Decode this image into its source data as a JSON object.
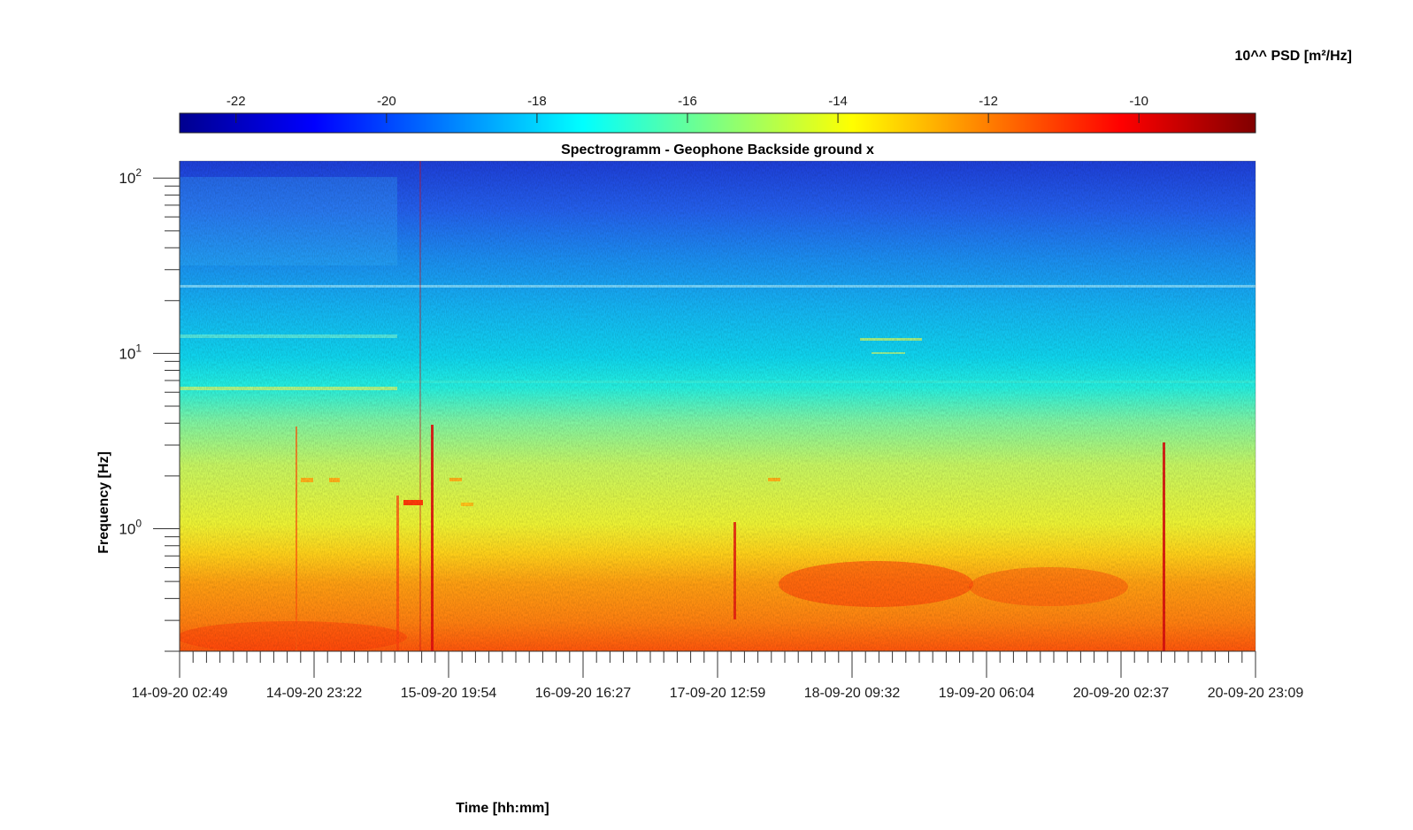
{
  "chart_data": {
    "type": "heatmap",
    "title": "Spectrogramm - Geophone Backside ground x",
    "xlabel": "Time [hh:mm]",
    "ylabel": "Frequency [Hz]",
    "x_scale": "time",
    "y_scale": "log",
    "x_ticks": [
      "14-09-20 02:49",
      "14-09-20 23:22",
      "15-09-20 19:54",
      "16-09-20 16:27",
      "17-09-20 12:59",
      "18-09-20 09:32",
      "19-09-20 06:04",
      "20-09-20 02:37",
      "20-09-20 23:09"
    ],
    "xlim": [
      "14-09-20 02:49",
      "20-09-20 23:09"
    ],
    "y_ticks": [
      {
        "base": "10",
        "exp": "0",
        "value": 1
      },
      {
        "base": "10",
        "exp": "1",
        "value": 10
      },
      {
        "base": "10",
        "exp": "2",
        "value": 100
      }
    ],
    "ylim": [
      0.2,
      125
    ],
    "colorbar": {
      "label": "10^^ PSD [m²/Hz]",
      "ticks": [
        "-22",
        "-20",
        "-18",
        "-16",
        "-14",
        "-12",
        "-10"
      ],
      "tick_values": [
        -22,
        -20,
        -18,
        -16,
        -14,
        -12,
        -10
      ],
      "range": [
        -22.75,
        -8.45
      ],
      "colormap": "jet",
      "placement": "top"
    },
    "approx_psd_profile_by_frequency": [
      {
        "freq_hz": 0.2,
        "log10_psd": -11.2
      },
      {
        "freq_hz": 0.5,
        "log10_psd": -11.8
      },
      {
        "freq_hz": 0.7,
        "log10_psd": -12.8
      },
      {
        "freq_hz": 1.0,
        "log10_psd": -13.8
      },
      {
        "freq_hz": 2.0,
        "log10_psd": -14.3
      },
      {
        "freq_hz": 4.0,
        "log10_psd": -15.0
      },
      {
        "freq_hz": 6.0,
        "log10_psd": -16.0
      },
      {
        "freq_hz": 10.0,
        "log10_psd": -17.2
      },
      {
        "freq_hz": 20.0,
        "log10_psd": -18.3
      },
      {
        "freq_hz": 50.0,
        "log10_psd": -19.6
      },
      {
        "freq_hz": 125.0,
        "log10_psd": -20.8
      }
    ]
  }
}
